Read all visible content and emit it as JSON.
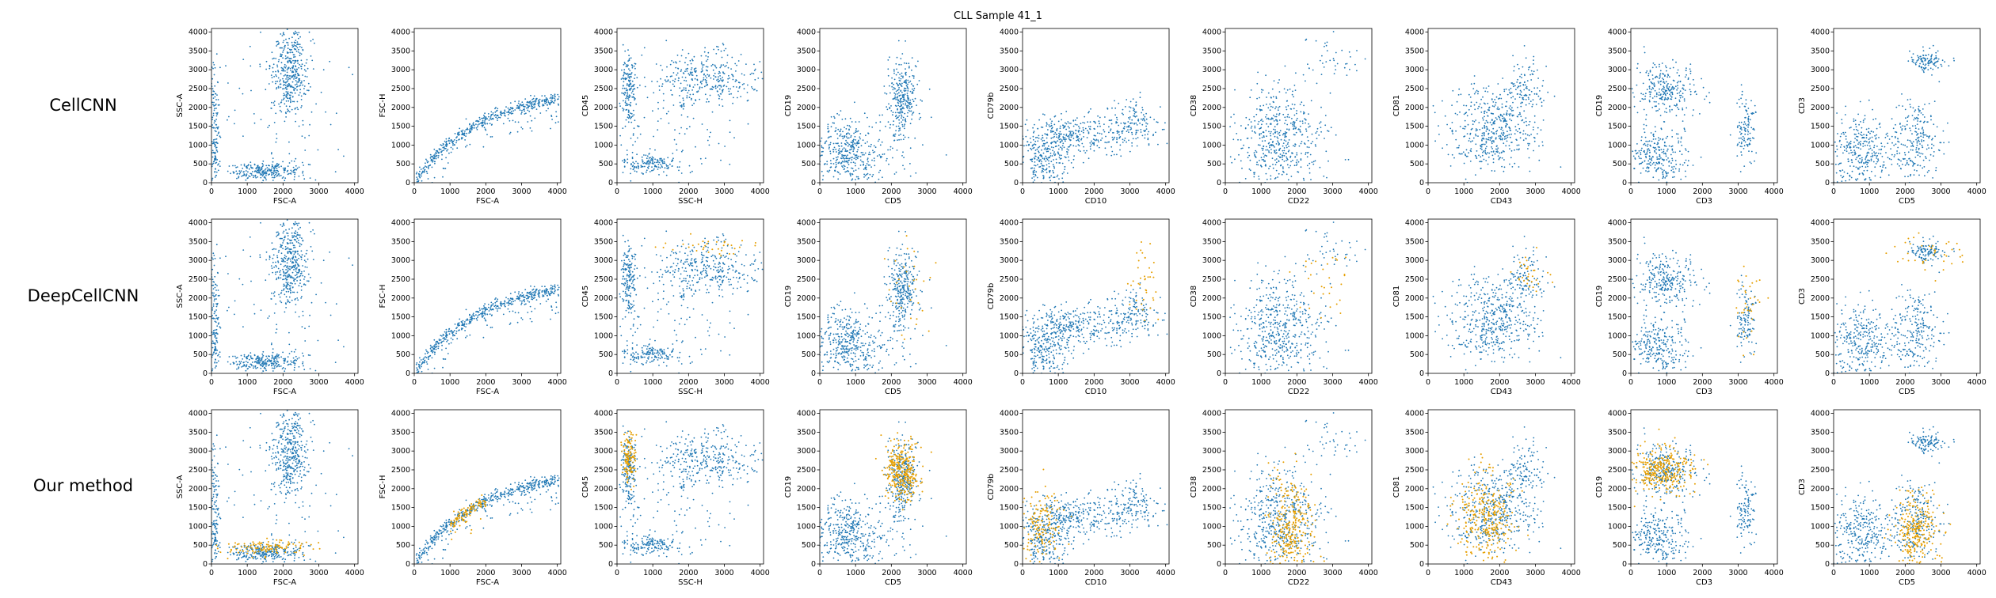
{
  "figure": {
    "title": "CLL Sample 41_1",
    "row_labels": [
      "CellCNN",
      "DeepCellCNN",
      "Our method"
    ],
    "colors": {
      "base": "#1f77b4",
      "highlight": "#e69f00"
    }
  },
  "chart_data": {
    "type": "scatter",
    "title": "CLL Sample 41_1",
    "xlim": [
      0,
      4096
    ],
    "ylim": [
      0,
      4096
    ],
    "ticks": [
      0,
      500,
      1000,
      1500,
      2000,
      2500,
      3000,
      3500,
      4000
    ],
    "x_ticks": [
      0,
      1000,
      2000,
      3000,
      4000
    ],
    "grid": false,
    "panels": [
      {
        "xlabel": "FSC-A",
        "ylabel": "SSC-A"
      },
      {
        "xlabel": "FSC-A",
        "ylabel": "FSC-H"
      },
      {
        "xlabel": "SSC-H",
        "ylabel": "CD45"
      },
      {
        "xlabel": "CD5",
        "ylabel": "CD19"
      },
      {
        "xlabel": "CD10",
        "ylabel": "CD79b"
      },
      {
        "xlabel": "CD22",
        "ylabel": "CD38"
      },
      {
        "xlabel": "CD43",
        "ylabel": "CD81"
      },
      {
        "xlabel": "CD3",
        "ylabel": "CD19"
      },
      {
        "xlabel": "CD5",
        "ylabel": "CD3"
      }
    ],
    "clusters": [
      [
        {
          "x": 2200,
          "y": 3000,
          "sx": 250,
          "sy": 600,
          "n": 380
        },
        {
          "x": 1500,
          "y": 320,
          "sx": 500,
          "sy": 120,
          "n": 250
        },
        {
          "x": 90,
          "y": 1200,
          "sx": 60,
          "sy": 900,
          "n": 150
        },
        {
          "x": 2000,
          "y": 1800,
          "sx": 1100,
          "sy": 1200,
          "n": 110
        }
      ],
      [
        {
          "curve": "fsc",
          "n": 520
        }
      ],
      [
        {
          "x": 2500,
          "y": 2800,
          "sx": 700,
          "sy": 350,
          "n": 330
        },
        {
          "x": 330,
          "y": 2500,
          "sx": 100,
          "sy": 500,
          "n": 170
        },
        {
          "x": 900,
          "y": 500,
          "sx": 500,
          "sy": 120,
          "n": 150
        },
        {
          "x": 1500,
          "y": 1300,
          "sx": 1000,
          "sy": 900,
          "n": 110
        }
      ],
      [
        {
          "x": 2300,
          "y": 2300,
          "sx": 230,
          "sy": 500,
          "n": 280
        },
        {
          "x": 700,
          "y": 800,
          "sx": 400,
          "sy": 450,
          "n": 330
        },
        {
          "x": 1600,
          "y": 800,
          "sx": 600,
          "sy": 500,
          "n": 110
        }
      ],
      [
        {
          "x": 1300,
          "y": 1200,
          "sx": 700,
          "sy": 300,
          "n": 360
        },
        {
          "x": 3000,
          "y": 1600,
          "sx": 350,
          "sy": 300,
          "n": 150
        },
        {
          "x": 600,
          "y": 500,
          "sx": 300,
          "sy": 300,
          "n": 160
        }
      ],
      [
        {
          "x": 1500,
          "y": 1200,
          "sx": 600,
          "sy": 650,
          "n": 500
        },
        {
          "x": 2900,
          "y": 3300,
          "sx": 400,
          "sy": 400,
          "n": 40
        }
      ],
      [
        {
          "x": 1800,
          "y": 1400,
          "sx": 600,
          "sy": 600,
          "n": 470
        },
        {
          "x": 2700,
          "y": 2400,
          "sx": 300,
          "sy": 400,
          "n": 110
        }
      ],
      [
        {
          "x": 1000,
          "y": 2500,
          "sx": 400,
          "sy": 350,
          "n": 260
        },
        {
          "x": 800,
          "y": 700,
          "sx": 400,
          "sy": 400,
          "n": 270
        },
        {
          "x": 3200,
          "y": 1400,
          "sx": 150,
          "sy": 500,
          "n": 110
        }
      ],
      [
        {
          "x": 800,
          "y": 800,
          "sx": 400,
          "sy": 500,
          "n": 300
        },
        {
          "x": 2300,
          "y": 1100,
          "sx": 350,
          "sy": 500,
          "n": 230
        },
        {
          "x": 2600,
          "y": 3200,
          "sx": 250,
          "sy": 150,
          "n": 110
        }
      ]
    ],
    "highlights": [
      [
        [],
        [],
        [
          {
            "x": 2600,
            "y": 3400,
            "sx": 700,
            "sy": 150,
            "n": 35
          }
        ],
        [
          {
            "x": 2500,
            "y": 2200,
            "sx": 300,
            "sy": 700,
            "n": 30
          }
        ],
        [
          {
            "x": 3400,
            "y": 2400,
            "sx": 200,
            "sy": 700,
            "n": 40
          }
        ],
        [
          {
            "x": 2600,
            "y": 2600,
            "sx": 400,
            "sy": 600,
            "n": 30
          }
        ],
        [
          {
            "x": 2800,
            "y": 2600,
            "sx": 300,
            "sy": 300,
            "n": 30
          }
        ],
        [
          {
            "x": 3300,
            "y": 1800,
            "sx": 200,
            "sy": 700,
            "n": 35
          }
        ],
        [
          {
            "x": 2700,
            "y": 3300,
            "sx": 500,
            "sy": 300,
            "n": 40
          }
        ]
      ],
      [
        [
          {
            "x": 1500,
            "y": 450,
            "sx": 600,
            "sy": 120,
            "n": 120
          }
        ],
        [
          {
            "curve": "fsc",
            "n": 100,
            "xmin": 1000,
            "xmax": 2000
          }
        ],
        [
          {
            "x": 330,
            "y": 2800,
            "sx": 100,
            "sy": 300,
            "n": 120
          }
        ],
        [
          {
            "x": 2300,
            "y": 2500,
            "sx": 250,
            "sy": 400,
            "n": 300
          }
        ],
        [
          {
            "x": 500,
            "y": 1000,
            "sx": 300,
            "sy": 450,
            "n": 160
          }
        ],
        [
          {
            "x": 1800,
            "y": 800,
            "sx": 300,
            "sy": 700,
            "n": 300
          }
        ],
        [
          {
            "x": 1600,
            "y": 1300,
            "sx": 400,
            "sy": 600,
            "n": 300
          }
        ],
        [
          {
            "x": 900,
            "y": 2500,
            "sx": 400,
            "sy": 300,
            "n": 300
          }
        ],
        [
          {
            "x": 2300,
            "y": 900,
            "sx": 300,
            "sy": 500,
            "n": 260
          }
        ]
      ]
    ]
  }
}
